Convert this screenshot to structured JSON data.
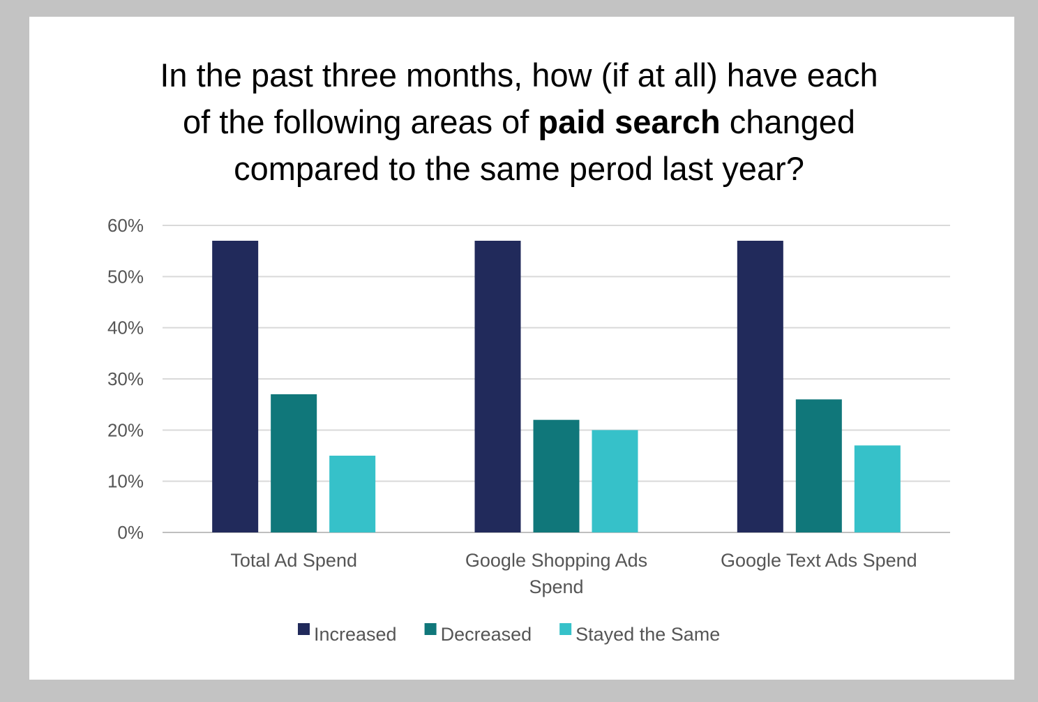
{
  "chart_data": {
    "type": "bar",
    "title": {
      "line1": "In the past three months, how (if at all) have each",
      "line2_before": "of the following areas of ",
      "line2_bold": "paid search",
      "line2_after": " changed",
      "line3": "compared to the same perod last year?"
    },
    "categories": [
      [
        "Total Ad Spend"
      ],
      [
        "Google Shopping Ads",
        "Spend"
      ],
      [
        "Google Text Ads Spend"
      ]
    ],
    "series": [
      {
        "name": "Increased",
        "color": "#212a5b",
        "values": [
          57,
          57,
          57
        ]
      },
      {
        "name": "Decreased",
        "color": "#10777a",
        "values": [
          27,
          22,
          26
        ]
      },
      {
        "name": "Stayed the Same",
        "color": "#36c1c9",
        "values": [
          15,
          20,
          17
        ]
      }
    ],
    "ylim": [
      0,
      60
    ],
    "yticks": [
      0,
      10,
      20,
      30,
      40,
      50,
      60
    ],
    "ytick_labels": [
      "0%",
      "10%",
      "20%",
      "30%",
      "40%",
      "50%",
      "60%"
    ],
    "xlabel": "",
    "ylabel": "",
    "grid": true,
    "legend_position": "bottom"
  }
}
